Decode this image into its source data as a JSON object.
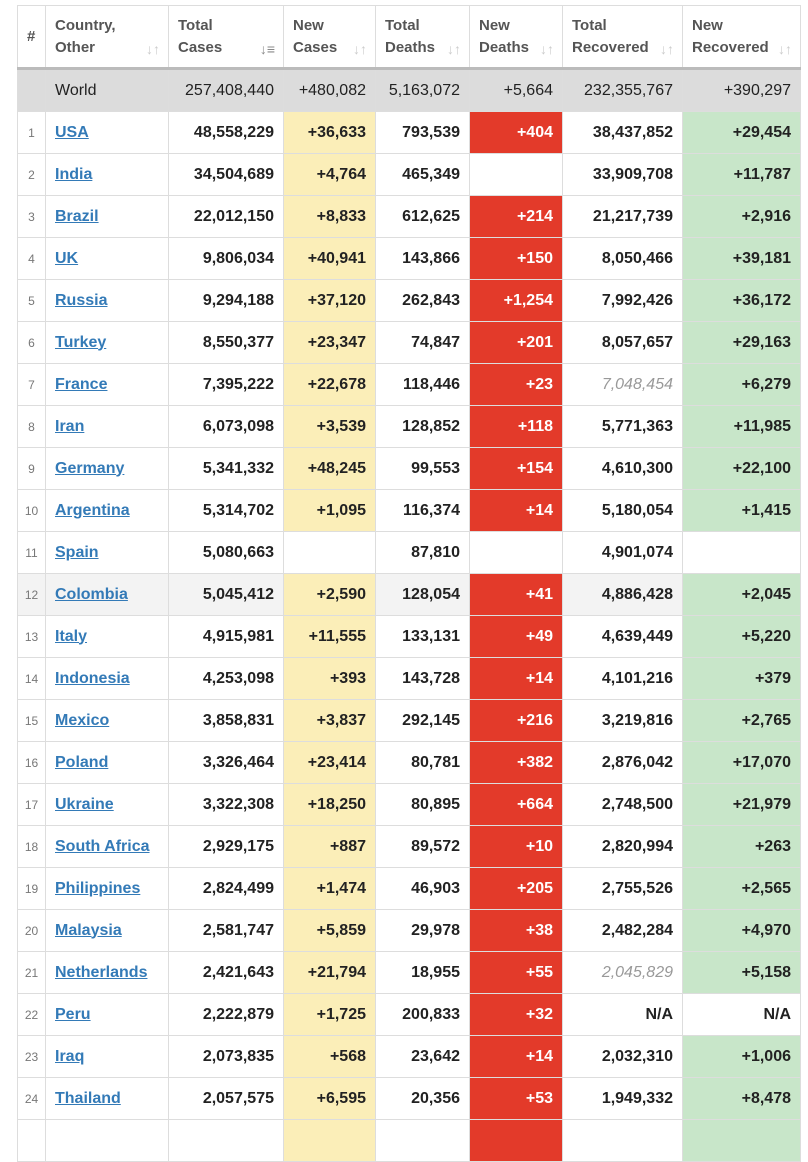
{
  "colors": {
    "new_cases": "#fbeeb8",
    "new_deaths": "#e33a2a",
    "new_recovered": "#c8e6c9",
    "link": "#337ab7"
  },
  "headers": [
    {
      "label": "#",
      "sort": ""
    },
    {
      "label": "Country, Other",
      "sort": "sort-icon"
    },
    {
      "label": "Total Cases",
      "sort": "sort-desc-icon"
    },
    {
      "label": "New Cases",
      "sort": "sort-icon"
    },
    {
      "label": "Total Deaths",
      "sort": "sort-icon"
    },
    {
      "label": "New Deaths",
      "sort": "sort-icon"
    },
    {
      "label": "Total Recovered",
      "sort": "sort-icon"
    },
    {
      "label": "New Recovered",
      "sort": "sort-icon"
    }
  ],
  "world": {
    "name": "World",
    "total_cases": "257,408,440",
    "new_cases": "+480,082",
    "total_deaths": "5,163,072",
    "new_deaths": "+5,664",
    "total_recovered": "232,355,767",
    "new_recovered": "+390,297"
  },
  "rows": [
    [
      "1",
      "USA",
      "48,558,229",
      "+36,633",
      "793,539",
      "+404",
      "38,437,852",
      "+29,454"
    ],
    [
      "2",
      "India",
      "34,504,689",
      "+4,764",
      "465,349",
      "",
      "33,909,708",
      "+11,787"
    ],
    [
      "3",
      "Brazil",
      "22,012,150",
      "+8,833",
      "612,625",
      "+214",
      "21,217,739",
      "+2,916"
    ],
    [
      "4",
      "UK",
      "9,806,034",
      "+40,941",
      "143,866",
      "+150",
      "8,050,466",
      "+39,181"
    ],
    [
      "5",
      "Russia",
      "9,294,188",
      "+37,120",
      "262,843",
      "+1,254",
      "7,992,426",
      "+36,172"
    ],
    [
      "6",
      "Turkey",
      "8,550,377",
      "+23,347",
      "74,847",
      "+201",
      "8,057,657",
      "+29,163"
    ],
    [
      "7",
      "France",
      "7,395,222",
      "+22,678",
      "118,446",
      "+23",
      "7,048,454",
      "+6,279"
    ],
    [
      "8",
      "Iran",
      "6,073,098",
      "+3,539",
      "128,852",
      "+118",
      "5,771,363",
      "+11,985"
    ],
    [
      "9",
      "Germany",
      "5,341,332",
      "+48,245",
      "99,553",
      "+154",
      "4,610,300",
      "+22,100"
    ],
    [
      "10",
      "Argentina",
      "5,314,702",
      "+1,095",
      "116,374",
      "+14",
      "5,180,054",
      "+1,415"
    ],
    [
      "11",
      "Spain",
      "5,080,663",
      "",
      "87,810",
      "",
      "4,901,074",
      ""
    ],
    [
      "12",
      "Colombia",
      "5,045,412",
      "+2,590",
      "128,054",
      "+41",
      "4,886,428",
      "+2,045"
    ],
    [
      "13",
      "Italy",
      "4,915,981",
      "+11,555",
      "133,131",
      "+49",
      "4,639,449",
      "+5,220"
    ],
    [
      "14",
      "Indonesia",
      "4,253,098",
      "+393",
      "143,728",
      "+14",
      "4,101,216",
      "+379"
    ],
    [
      "15",
      "Mexico",
      "3,858,831",
      "+3,837",
      "292,145",
      "+216",
      "3,219,816",
      "+2,765"
    ],
    [
      "16",
      "Poland",
      "3,326,464",
      "+23,414",
      "80,781",
      "+382",
      "2,876,042",
      "+17,070"
    ],
    [
      "17",
      "Ukraine",
      "3,322,308",
      "+18,250",
      "80,895",
      "+664",
      "2,748,500",
      "+21,979"
    ],
    [
      "18",
      "South Africa",
      "2,929,175",
      "+887",
      "89,572",
      "+10",
      "2,820,994",
      "+263"
    ],
    [
      "19",
      "Philippines",
      "2,824,499",
      "+1,474",
      "46,903",
      "+205",
      "2,755,526",
      "+2,565"
    ],
    [
      "20",
      "Malaysia",
      "2,581,747",
      "+5,859",
      "29,978",
      "+38",
      "2,482,284",
      "+4,970"
    ],
    [
      "21",
      "Netherlands",
      "2,421,643",
      "+21,794",
      "18,955",
      "+55",
      "2,045,829",
      "+5,158"
    ],
    [
      "22",
      "Peru",
      "2,222,879",
      "+1,725",
      "200,833",
      "+32",
      "N/A",
      "N/A"
    ],
    [
      "23",
      "Iraq",
      "2,073,835",
      "+568",
      "23,642",
      "+14",
      "2,032,310",
      "+1,006"
    ],
    [
      "24",
      "Thailand",
      "2,057,575",
      "+6,595",
      "20,356",
      "+53",
      "1,949,332",
      "+8,478"
    ],
    [
      "",
      "",
      "",
      "",
      "",
      "",
      "",
      ""
    ]
  ],
  "italic_recovered": [
    "France",
    "Netherlands"
  ],
  "hover_row": "Colombia"
}
